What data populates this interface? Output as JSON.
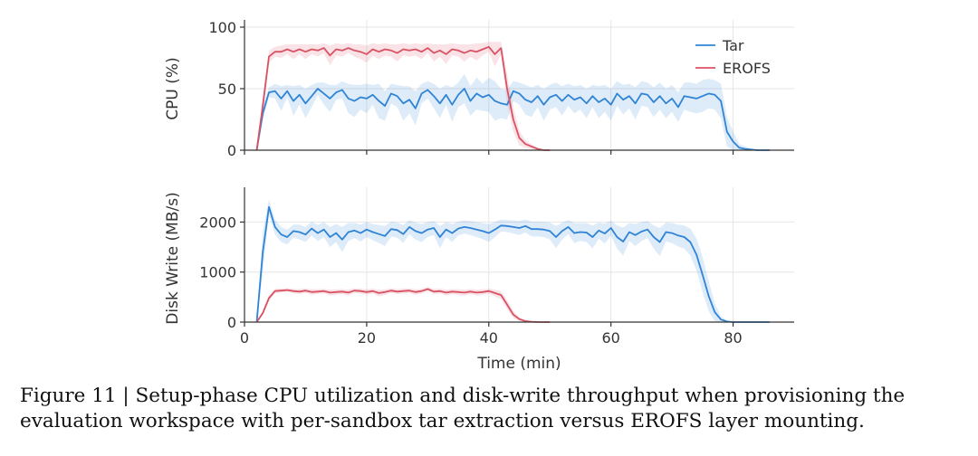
{
  "caption": {
    "text": "Figure 11 | Setup-phase CPU utilization and disk-write throughput when provisioning the evaluation workspace with per-sandbox tar extraction versus EROFS layer mounting."
  },
  "colors": {
    "tar": "#2f84d6",
    "erofs": "#d95264",
    "grid": "#e6e6e6",
    "axis": "#333333"
  },
  "chart_data": [
    {
      "type": "line",
      "title": "",
      "xlabel": "",
      "ylabel": "CPU (%)",
      "xlim": [
        0,
        90
      ],
      "ylim": [
        0,
        100
      ],
      "xticks": [
        0,
        20,
        40,
        60,
        80
      ],
      "yticks": [
        0,
        50,
        100
      ],
      "grid": true,
      "legend": "top-right",
      "series": [
        {
          "name": "Tar",
          "color": "#2f84d6",
          "x": [
            2,
            3,
            4,
            5,
            6,
            7,
            8,
            9,
            10,
            11,
            12,
            13,
            14,
            15,
            16,
            17,
            18,
            19,
            20,
            21,
            22,
            23,
            24,
            25,
            26,
            27,
            28,
            29,
            30,
            31,
            32,
            33,
            34,
            35,
            36,
            37,
            38,
            39,
            40,
            41,
            42,
            43,
            44,
            45,
            46,
            47,
            48,
            49,
            50,
            51,
            52,
            53,
            54,
            55,
            56,
            57,
            58,
            59,
            60,
            61,
            62,
            63,
            64,
            65,
            66,
            67,
            68,
            69,
            70,
            71,
            72,
            73,
            74,
            75,
            76,
            77,
            78,
            79,
            80,
            81,
            82,
            84,
            86
          ],
          "y": [
            0,
            30,
            47,
            48,
            42,
            48,
            40,
            45,
            38,
            44,
            50,
            46,
            42,
            47,
            49,
            42,
            40,
            43,
            42,
            45,
            40,
            36,
            46,
            44,
            38,
            41,
            34,
            46,
            49,
            44,
            38,
            45,
            37,
            45,
            50,
            40,
            46,
            43,
            45,
            40,
            38,
            37,
            48,
            46,
            41,
            39,
            44,
            37,
            43,
            45,
            40,
            45,
            41,
            43,
            38,
            44,
            39,
            42,
            37,
            46,
            41,
            44,
            38,
            46,
            45,
            39,
            44,
            38,
            42,
            35,
            44,
            43,
            42,
            44,
            46,
            45,
            40,
            15,
            7,
            2,
            1,
            0,
            0
          ],
          "band": [
            0,
            6,
            4,
            6,
            10,
            5,
            12,
            8,
            12,
            9,
            5,
            9,
            11,
            6,
            7,
            12,
            13,
            10,
            12,
            8,
            14,
            12,
            8,
            9,
            14,
            11,
            14,
            8,
            7,
            10,
            12,
            8,
            14,
            10,
            12,
            12,
            13,
            11,
            14,
            16,
            12,
            12,
            8,
            9,
            12,
            12,
            9,
            13,
            10,
            10,
            12,
            9,
            11,
            10,
            12,
            9,
            13,
            11,
            13,
            10,
            12,
            10,
            13,
            10,
            10,
            12,
            11,
            12,
            11,
            12,
            11,
            12,
            12,
            13,
            12,
            12,
            14,
            12,
            8,
            3,
            2,
            0,
            0
          ]
        },
        {
          "name": "EROFS",
          "color": "#d95264",
          "x": [
            2,
            3,
            4,
            5,
            6,
            7,
            8,
            9,
            10,
            11,
            12,
            13,
            14,
            15,
            16,
            17,
            18,
            19,
            20,
            21,
            22,
            23,
            24,
            25,
            26,
            27,
            28,
            29,
            30,
            31,
            32,
            33,
            34,
            35,
            36,
            37,
            38,
            39,
            40,
            41,
            42,
            43,
            44,
            45,
            46,
            47,
            48,
            49,
            50
          ],
          "y": [
            0,
            36,
            76,
            80,
            80,
            82,
            80,
            82,
            80,
            82,
            81,
            83,
            77,
            82,
            81,
            83,
            81,
            80,
            78,
            82,
            80,
            82,
            81,
            79,
            82,
            81,
            82,
            80,
            83,
            79,
            81,
            78,
            82,
            81,
            79,
            81,
            80,
            82,
            84,
            78,
            83,
            50,
            25,
            10,
            5,
            3,
            1,
            0,
            0
          ],
          "band": [
            0,
            8,
            5,
            4,
            5,
            4,
            6,
            4,
            6,
            4,
            5,
            4,
            8,
            5,
            5,
            4,
            5,
            6,
            7,
            5,
            6,
            5,
            5,
            7,
            5,
            5,
            5,
            6,
            4,
            7,
            5,
            8,
            5,
            5,
            7,
            5,
            7,
            5,
            4,
            10,
            5,
            12,
            10,
            6,
            3,
            2,
            1,
            0,
            0
          ]
        }
      ]
    },
    {
      "type": "line",
      "title": "",
      "xlabel": "Time (min)",
      "ylabel": "Disk Write (MB/s)",
      "xlim": [
        0,
        90
      ],
      "ylim": [
        0,
        2550
      ],
      "xticks": [
        0,
        20,
        40,
        60,
        80
      ],
      "yticks": [
        0,
        1000,
        2000
      ],
      "grid": true,
      "legend": "none",
      "series": [
        {
          "name": "Tar",
          "color": "#2f84d6",
          "x": [
            2,
            3,
            4,
            5,
            6,
            7,
            8,
            9,
            10,
            11,
            12,
            13,
            14,
            15,
            16,
            17,
            18,
            19,
            20,
            21,
            22,
            23,
            24,
            25,
            26,
            27,
            28,
            29,
            30,
            31,
            32,
            33,
            34,
            35,
            36,
            37,
            38,
            39,
            40,
            41,
            42,
            43,
            44,
            45,
            46,
            47,
            48,
            49,
            50,
            51,
            52,
            53,
            54,
            55,
            56,
            57,
            58,
            59,
            60,
            61,
            62,
            63,
            64,
            65,
            66,
            67,
            68,
            69,
            70,
            71,
            72,
            73,
            74,
            75,
            76,
            77,
            78,
            79,
            80,
            81,
            82,
            84,
            86
          ],
          "y": [
            0,
            1400,
            2300,
            1900,
            1750,
            1700,
            1820,
            1800,
            1750,
            1870,
            1780,
            1850,
            1700,
            1780,
            1650,
            1800,
            1830,
            1780,
            1850,
            1800,
            1760,
            1720,
            1860,
            1840,
            1760,
            1900,
            1820,
            1780,
            1850,
            1880,
            1700,
            1850,
            1780,
            1870,
            1900,
            1880,
            1850,
            1820,
            1780,
            1850,
            1930,
            1920,
            1900,
            1880,
            1920,
            1860,
            1860,
            1850,
            1820,
            1700,
            1820,
            1900,
            1780,
            1800,
            1790,
            1700,
            1830,
            1770,
            1880,
            1700,
            1610,
            1800,
            1740,
            1810,
            1850,
            1700,
            1600,
            1800,
            1780,
            1730,
            1700,
            1600,
            1350,
            950,
            520,
            200,
            50,
            10,
            0,
            0,
            0,
            0,
            0
          ],
          "band": [
            0,
            400,
            150,
            150,
            150,
            150,
            130,
            150,
            150,
            140,
            160,
            150,
            200,
            180,
            250,
            180,
            150,
            170,
            150,
            160,
            180,
            200,
            150,
            150,
            180,
            140,
            170,
            180,
            150,
            140,
            220,
            150,
            180,
            140,
            130,
            140,
            150,
            160,
            180,
            150,
            120,
            120,
            130,
            140,
            130,
            150,
            150,
            150,
            170,
            220,
            170,
            140,
            200,
            180,
            190,
            230,
            160,
            200,
            150,
            230,
            280,
            180,
            220,
            190,
            170,
            230,
            280,
            190,
            200,
            220,
            230,
            270,
            320,
            350,
            300,
            180,
            60,
            20,
            5,
            0,
            0,
            0,
            0
          ]
        },
        {
          "name": "EROFS",
          "color": "#d95264",
          "x": [
            2,
            3,
            4,
            5,
            6,
            7,
            8,
            9,
            10,
            11,
            12,
            13,
            14,
            15,
            16,
            17,
            18,
            19,
            20,
            21,
            22,
            23,
            24,
            25,
            26,
            27,
            28,
            29,
            30,
            31,
            32,
            33,
            34,
            35,
            36,
            37,
            38,
            39,
            40,
            41,
            42,
            43,
            44,
            45,
            46,
            47,
            48,
            49,
            50
          ],
          "y": [
            0,
            180,
            480,
            620,
            630,
            640,
            620,
            610,
            630,
            600,
            610,
            620,
            590,
            600,
            610,
            590,
            630,
            620,
            600,
            620,
            580,
            600,
            630,
            610,
            620,
            630,
            600,
            620,
            660,
            610,
            620,
            590,
            610,
            600,
            590,
            610,
            590,
            600,
            620,
            580,
            540,
            350,
            150,
            60,
            20,
            8,
            2,
            0,
            0
          ],
          "band": [
            0,
            40,
            60,
            45,
            40,
            40,
            45,
            50,
            45,
            55,
            50,
            45,
            60,
            55,
            50,
            60,
            45,
            50,
            55,
            50,
            65,
            55,
            45,
            50,
            50,
            45,
            55,
            50,
            40,
            55,
            50,
            60,
            50,
            55,
            60,
            50,
            60,
            55,
            50,
            70,
            80,
            90,
            70,
            40,
            15,
            6,
            2,
            0,
            0
          ]
        }
      ]
    }
  ]
}
